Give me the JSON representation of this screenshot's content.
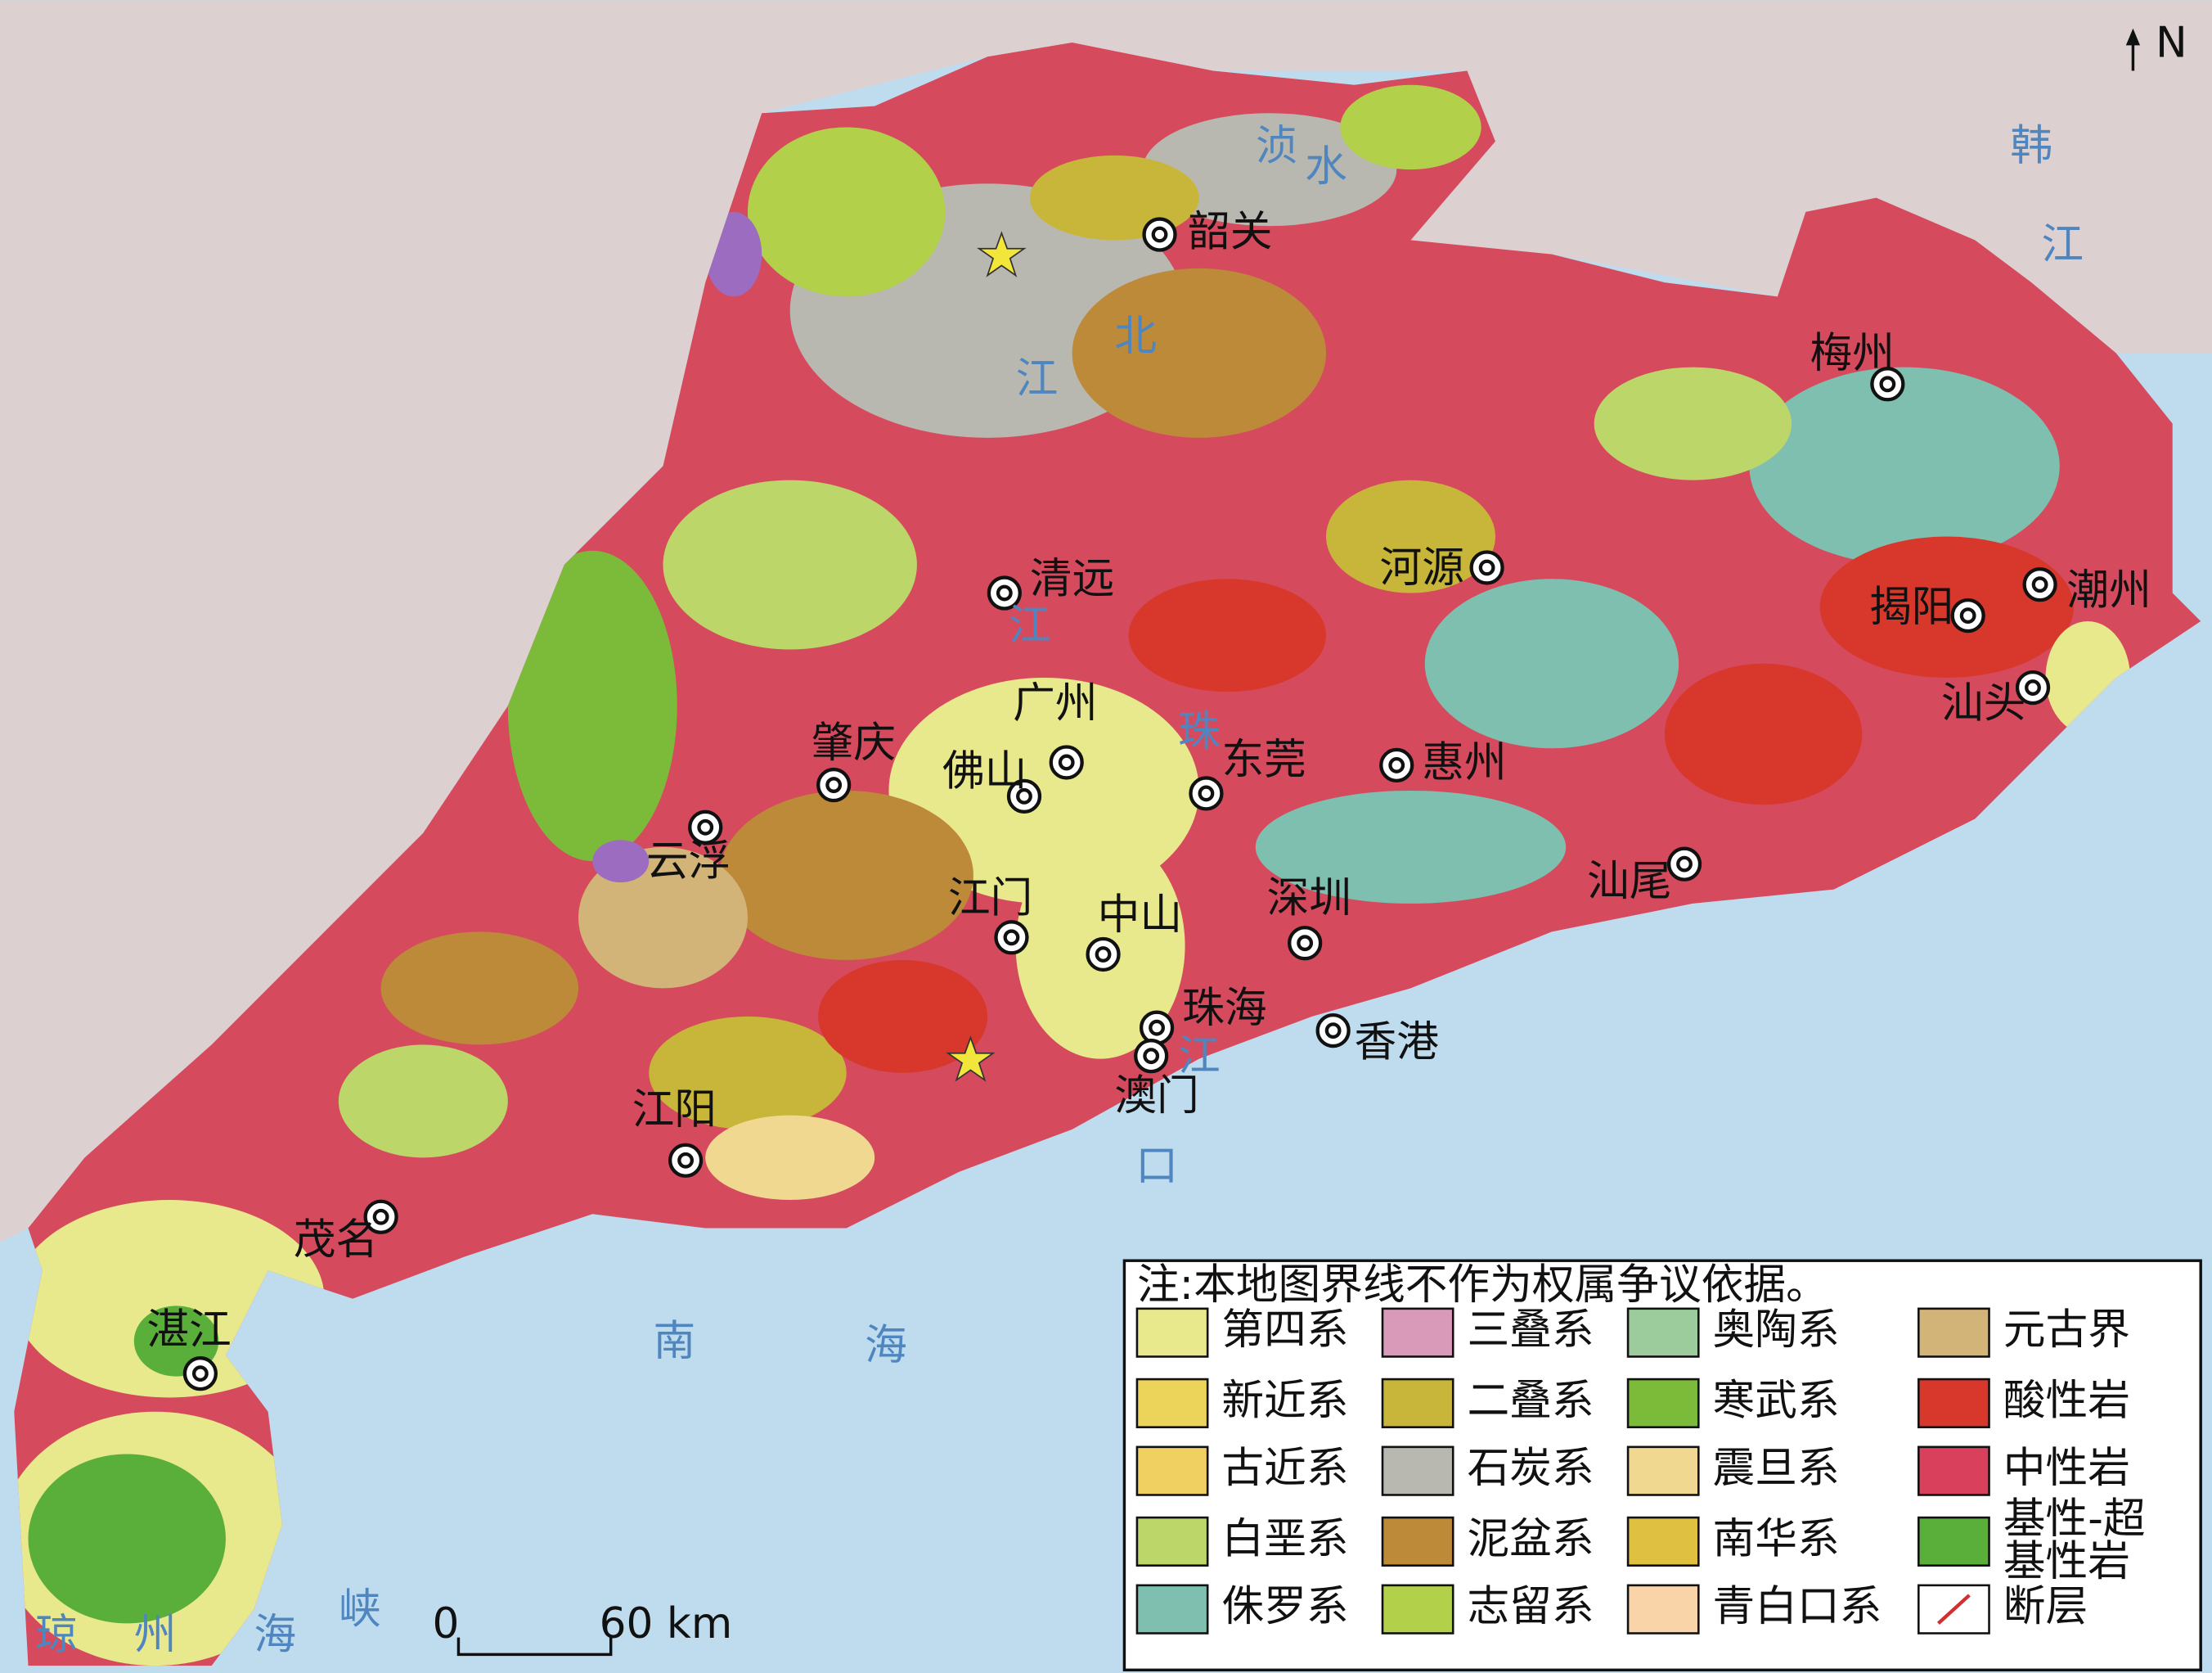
{
  "north": "N",
  "cities": [
    "韶关",
    "梅州",
    "清远",
    "河源",
    "揭阳",
    "潮州",
    "汕头",
    "广州",
    "肇庆",
    "佛山",
    "东莞",
    "惠州",
    "云浮",
    "汕尾",
    "江门",
    "中山",
    "深圳",
    "珠海",
    "香港",
    "澳门",
    "江阳",
    "茂名",
    "湛江"
  ],
  "water_labels": [
    "浈",
    "水",
    "韩",
    "江",
    "北",
    "江",
    "珠",
    "江",
    "江",
    "口",
    "南",
    "海",
    "琼",
    "州",
    "海",
    "峡"
  ],
  "legend": {
    "note": "注:本地图界线不作为权属争议依据。",
    "items": [
      {
        "label": "第四系",
        "color": "#e8e88c"
      },
      {
        "label": "新近系",
        "color": "#ecd35a"
      },
      {
        "label": "古近系",
        "color": "#f0d060"
      },
      {
        "label": "白垩系",
        "color": "#bcd66a"
      },
      {
        "label": "侏罗系",
        "color": "#7fbfaf"
      },
      {
        "label": "三叠系",
        "color": "#d89ab8"
      },
      {
        "label": "二叠系",
        "color": "#c8b63a"
      },
      {
        "label": "石炭系",
        "color": "#b8b8b0"
      },
      {
        "label": "泥盆系",
        "color": "#bd8a3a"
      },
      {
        "label": "志留系",
        "color": "#b2d04a"
      },
      {
        "label": "奥陶系",
        "color": "#9ccc9c"
      },
      {
        "label": "寒武系",
        "color": "#7cba3a"
      },
      {
        "label": "震旦系",
        "color": "#f0d890"
      },
      {
        "label": "南华系",
        "color": "#e0c040"
      },
      {
        "label": "青白口系",
        "color": "#f8d4a8"
      },
      {
        "label": "元古界",
        "color": "#d2b478"
      },
      {
        "label": "酸性岩",
        "color": "#d8382c"
      },
      {
        "label": "中性岩",
        "color": "#d8405c"
      },
      {
        "label": [
          "基性-超",
          "基性岩"
        ],
        "color": "#5aae3a"
      },
      {
        "label": "断层",
        "color": "#d03030",
        "symbol": "line"
      }
    ]
  },
  "scale_bar": {
    "start": "0",
    "end": "60 km"
  }
}
